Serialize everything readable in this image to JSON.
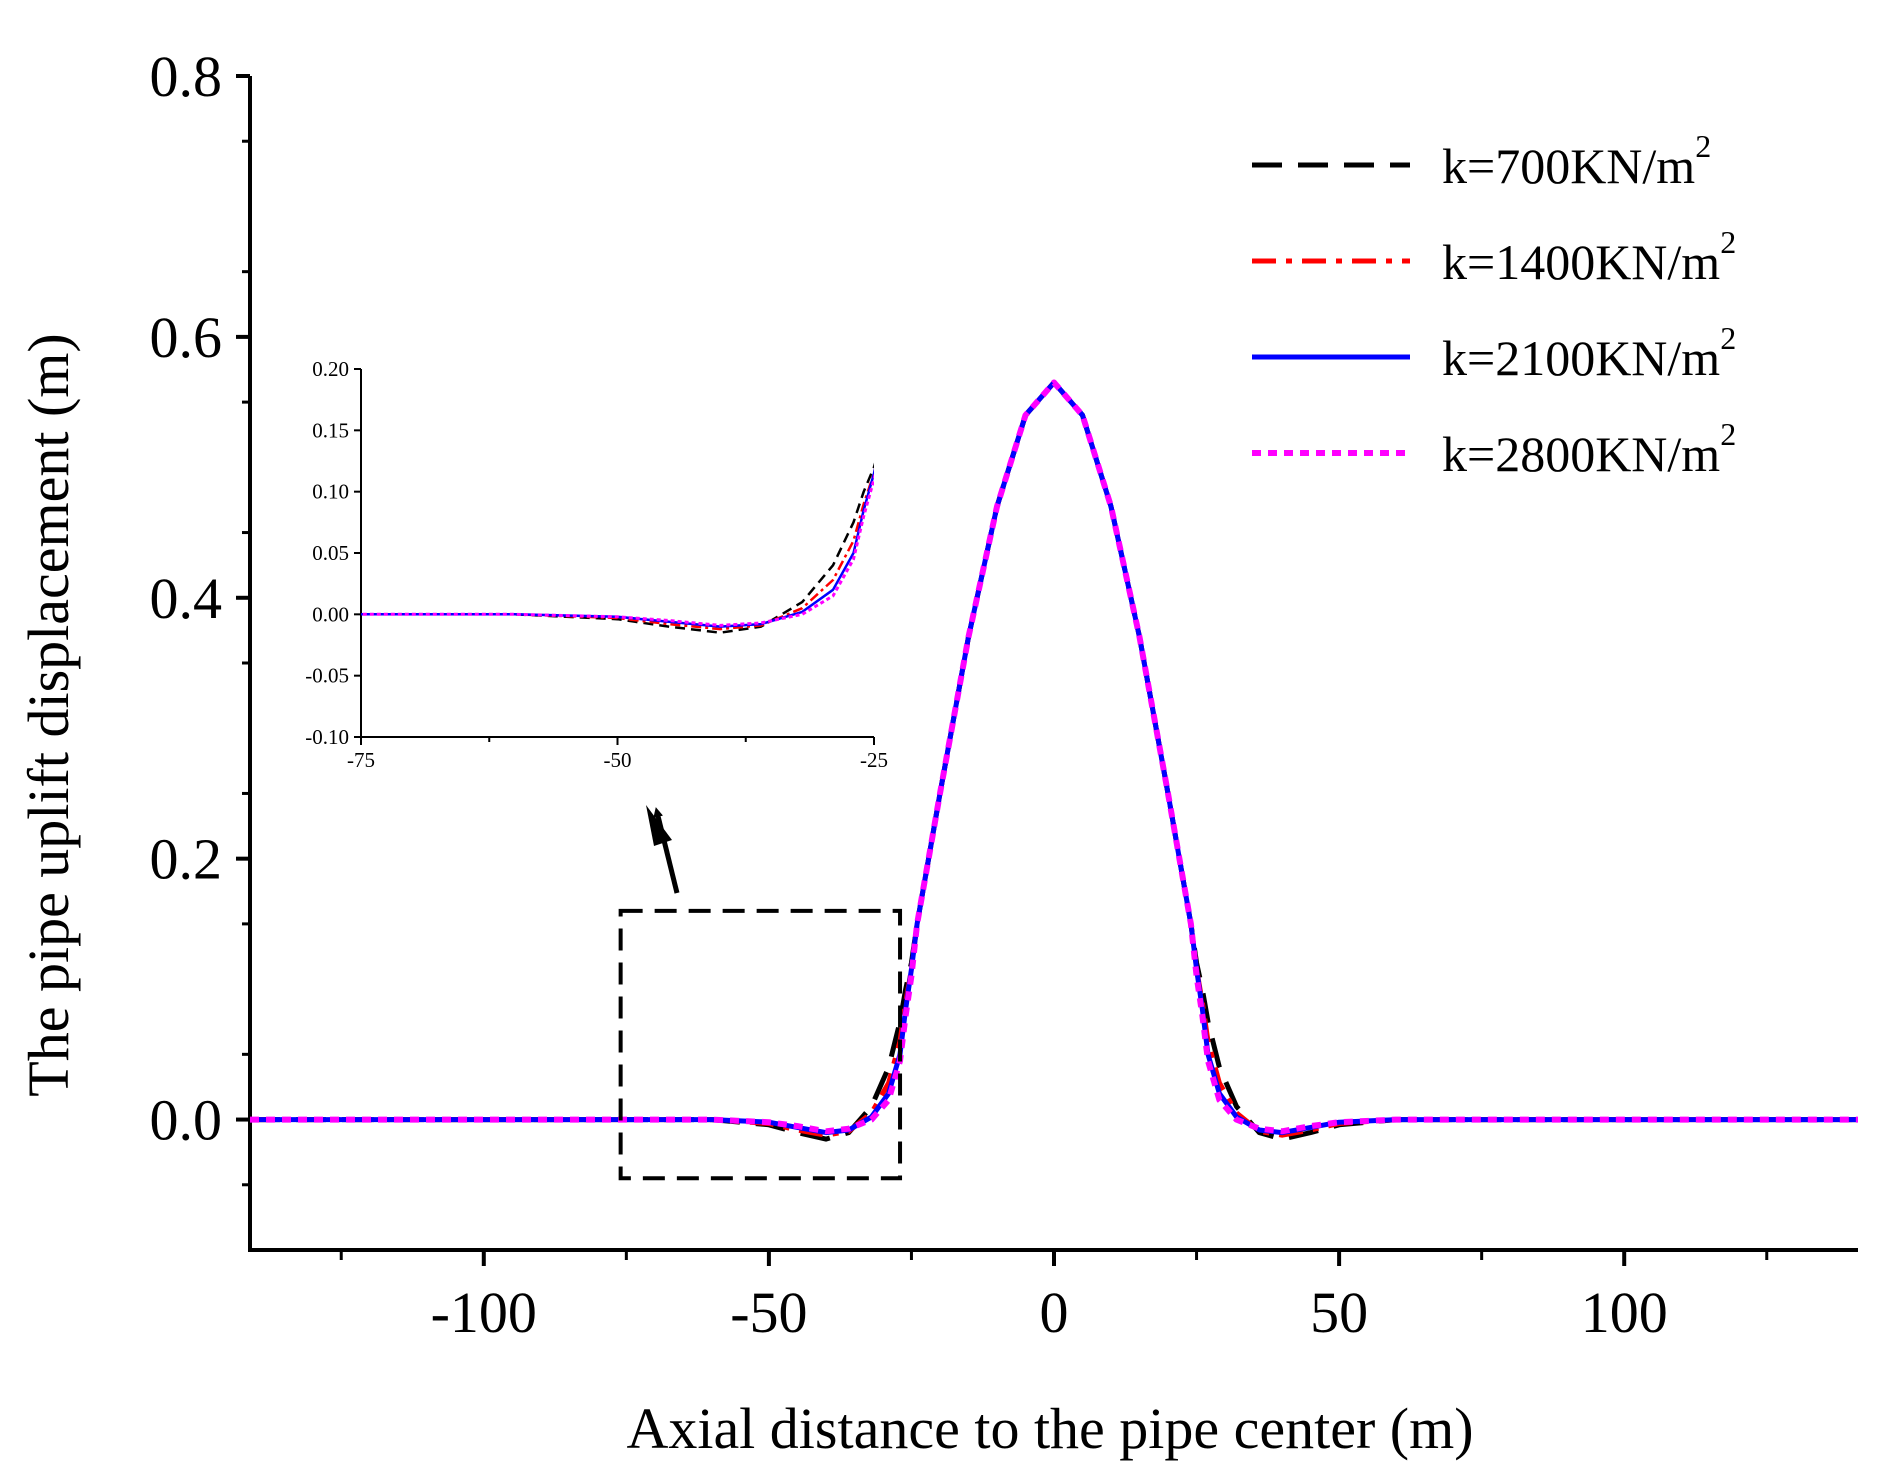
{
  "chart_data": {
    "type": "line",
    "xlabel": "Axial distance to the pipe center (m)",
    "ylabel": "The pipe uplift displacement (m)",
    "xlim": [
      -141,
      141
    ],
    "ylim": [
      -0.1,
      0.8
    ],
    "xticks": [
      -100,
      -50,
      0,
      50,
      100
    ],
    "xtick_labels": [
      "-100",
      "-50",
      "0",
      "50",
      "100"
    ],
    "yticks": [
      0.0,
      0.2,
      0.4,
      0.6,
      0.8
    ],
    "ytick_labels": [
      "0.0",
      "0.2",
      "0.4",
      "0.6",
      "0.8"
    ],
    "legend_position": "top-right",
    "peak": {
      "x": 0,
      "y": 0.565
    },
    "series": [
      {
        "name": "k=700KN/m",
        "sup": "2",
        "color": "#000000",
        "dash": "dashed",
        "x": [
          -141,
          -60,
          -50,
          -45,
          -40,
          -36,
          -32,
          -29,
          -27,
          -26,
          -25,
          -24,
          -22,
          -20,
          -15,
          -10,
          -5,
          0,
          5,
          10,
          15,
          20,
          22,
          24,
          25,
          26,
          27,
          29,
          32,
          36,
          40,
          45,
          50,
          60,
          141
        ],
        "y": [
          0,
          0,
          -0.004,
          -0.01,
          -0.015,
          -0.01,
          0.01,
          0.04,
          0.075,
          0.1,
          0.12,
          0.15,
          0.2,
          0.25,
          0.37,
          0.47,
          0.54,
          0.565,
          0.54,
          0.47,
          0.37,
          0.25,
          0.2,
          0.15,
          0.12,
          0.1,
          0.075,
          0.04,
          0.01,
          -0.01,
          -0.015,
          -0.01,
          -0.004,
          0,
          0
        ]
      },
      {
        "name": "k=1400KN/m",
        "sup": "2",
        "color": "#ff0000",
        "dash": "dashdot",
        "x": [
          -141,
          -60,
          -50,
          -45,
          -40,
          -36,
          -32,
          -29,
          -27,
          -26,
          -25,
          -24,
          -22,
          -20,
          -15,
          -10,
          -5,
          0,
          5,
          10,
          15,
          20,
          22,
          24,
          25,
          26,
          27,
          29,
          32,
          36,
          40,
          45,
          50,
          60,
          141
        ],
        "y": [
          0,
          0,
          -0.003,
          -0.008,
          -0.012,
          -0.009,
          0.005,
          0.028,
          0.06,
          0.09,
          0.115,
          0.15,
          0.2,
          0.25,
          0.37,
          0.47,
          0.54,
          0.565,
          0.54,
          0.47,
          0.37,
          0.25,
          0.2,
          0.15,
          0.115,
          0.09,
          0.06,
          0.028,
          0.005,
          -0.009,
          -0.012,
          -0.008,
          -0.003,
          0,
          0
        ]
      },
      {
        "name": "k=2100KN/m",
        "sup": "2",
        "color": "#0000ff",
        "dash": "solid",
        "x": [
          -141,
          -60,
          -50,
          -45,
          -40,
          -36,
          -32,
          -29,
          -27,
          -26,
          -25,
          -24,
          -22,
          -20,
          -15,
          -10,
          -5,
          0,
          5,
          10,
          15,
          20,
          22,
          24,
          25,
          26,
          27,
          29,
          32,
          36,
          40,
          45,
          50,
          60,
          141
        ],
        "y": [
          0,
          0,
          -0.002,
          -0.006,
          -0.01,
          -0.008,
          0.002,
          0.02,
          0.05,
          0.085,
          0.115,
          0.15,
          0.2,
          0.25,
          0.37,
          0.47,
          0.54,
          0.565,
          0.54,
          0.47,
          0.37,
          0.25,
          0.2,
          0.15,
          0.115,
          0.085,
          0.05,
          0.02,
          0.002,
          -0.008,
          -0.01,
          -0.006,
          -0.002,
          0,
          0
        ]
      },
      {
        "name": "k=2800KN/m",
        "sup": "2",
        "color": "#ff00ff",
        "dash": "dotted",
        "x": [
          -141,
          -60,
          -50,
          -45,
          -40,
          -36,
          -32,
          -29,
          -27,
          -26,
          -25,
          -24,
          -22,
          -20,
          -15,
          -10,
          -5,
          0,
          5,
          10,
          15,
          20,
          22,
          24,
          25,
          26,
          27,
          29,
          32,
          36,
          40,
          45,
          50,
          60,
          141
        ],
        "y": [
          0,
          0,
          -0.002,
          -0.005,
          -0.009,
          -0.007,
          0.0,
          0.015,
          0.045,
          0.08,
          0.11,
          0.15,
          0.2,
          0.25,
          0.37,
          0.47,
          0.54,
          0.565,
          0.54,
          0.47,
          0.37,
          0.25,
          0.2,
          0.15,
          0.11,
          0.08,
          0.045,
          0.015,
          0.0,
          -0.007,
          -0.009,
          -0.005,
          -0.002,
          0,
          0
        ]
      }
    ],
    "zoom_box": {
      "xlim": [
        -76,
        -27
      ],
      "ylim": [
        -0.045,
        0.16
      ]
    },
    "inset": {
      "xlim": [
        -75,
        -25
      ],
      "ylim": [
        -0.1,
        0.2
      ],
      "xticks": [
        -75,
        -50,
        -25
      ],
      "xtick_labels": [
        "-75",
        "-50",
        "-25"
      ],
      "yticks": [
        -0.1,
        -0.05,
        0.0,
        0.05,
        0.1,
        0.15,
        0.2
      ],
      "ytick_labels": [
        "-0.10",
        "-0.05",
        "0.00",
        "0.05",
        "0.10",
        "0.15",
        "0.20"
      ]
    }
  }
}
